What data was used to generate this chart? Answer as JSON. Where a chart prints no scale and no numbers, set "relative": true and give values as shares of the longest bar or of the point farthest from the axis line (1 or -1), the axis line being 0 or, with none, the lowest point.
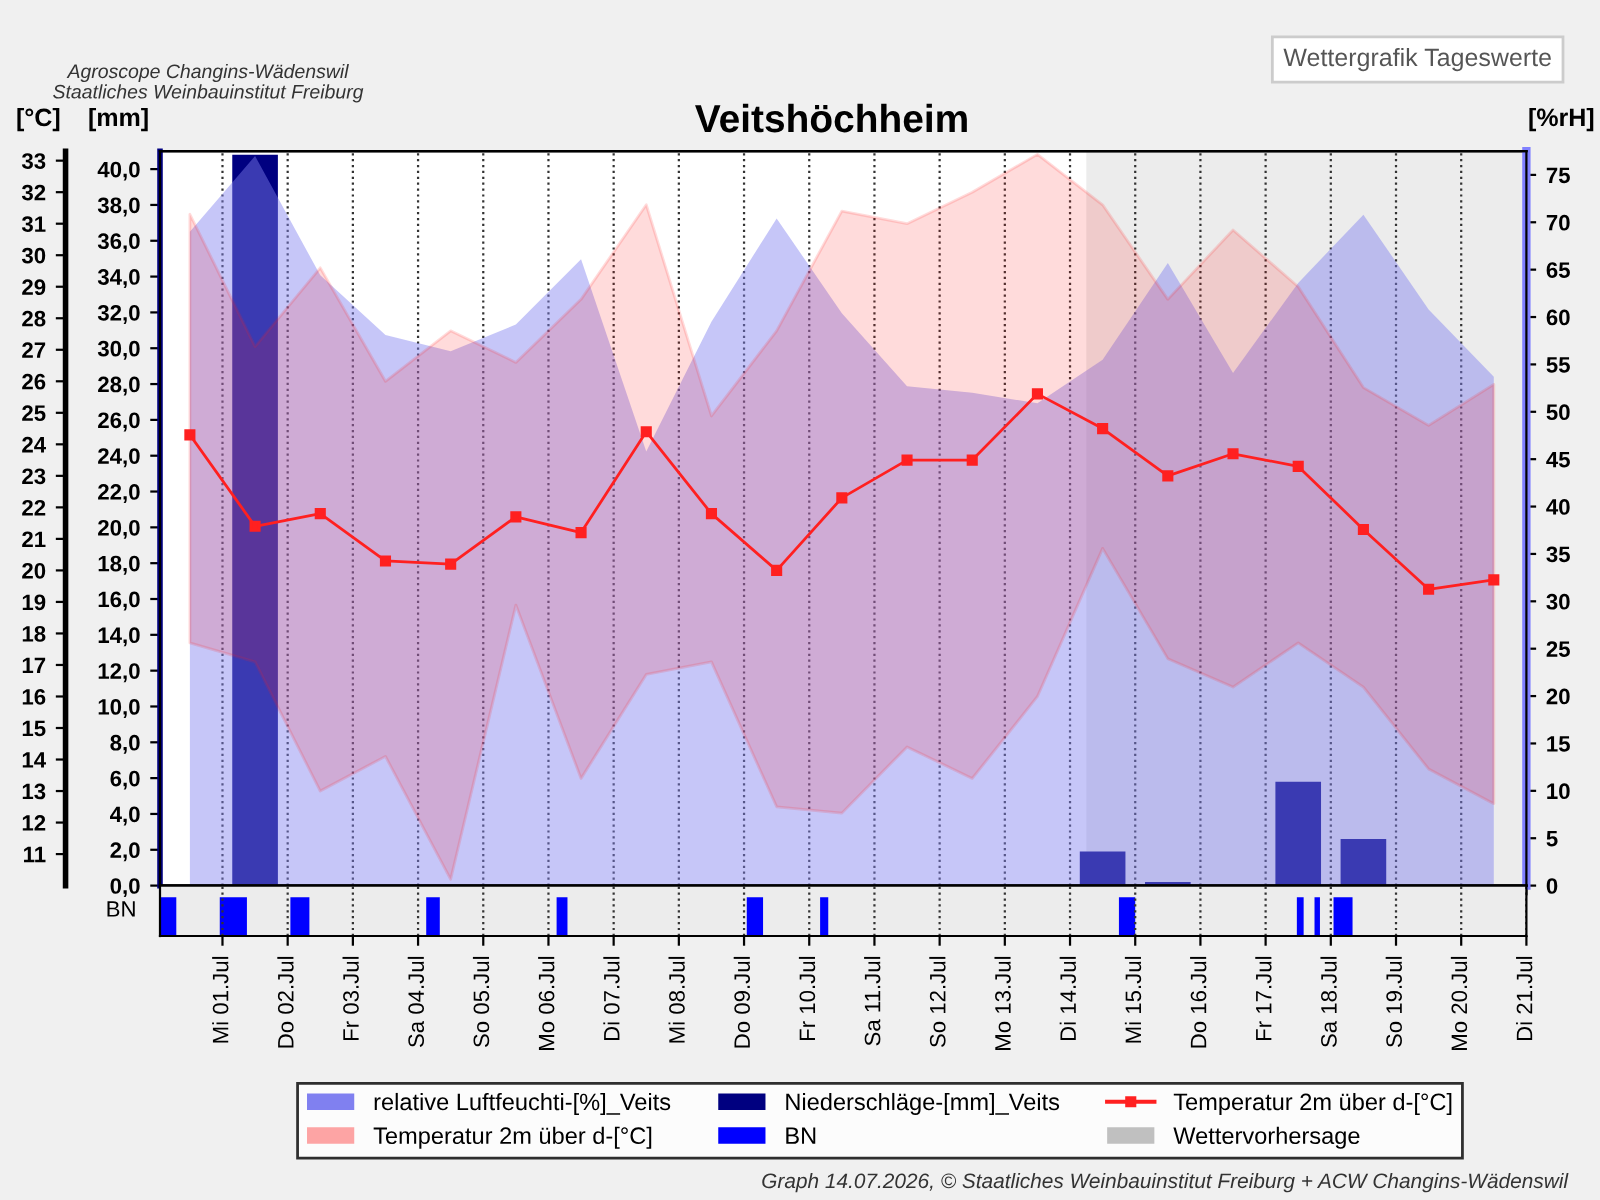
{
  "chart_data": [
    {
      "type": "line",
      "title": "Veitshöchheim",
      "ylabel": "[mm]",
      "y2label": "[%rH]",
      "y3label": "[°C]",
      "x": [
        "2026-06-30T12:00",
        "2026-07-01T12:00",
        "2026-07-02T12:00",
        "2026-07-03T12:00",
        "2026-07-04T12:00",
        "2026-07-05T12:00",
        "2026-07-06T12:00",
        "2026-07-07T12:00",
        "2026-07-08T12:00",
        "2026-07-09T12:00",
        "2026-07-10T12:00",
        "2026-07-11T12:00",
        "2026-07-12T12:00",
        "2026-07-13T12:00",
        "2026-07-14T12:00",
        "2026-07-15T12:00",
        "2026-07-16T12:00",
        "2026-07-17T12:00",
        "2026-07-18T12:00",
        "2026-07-19T12:00",
        "2026-07-20T12:00"
      ],
      "series": [
        {
          "name": "relative Luftfeuchti-[%]_Veits",
          "type": "area",
          "axis": "y2",
          "color": "#8080f0",
          "values": [
            69.0,
            77.0,
            64.4,
            58.1,
            56.4,
            59.2,
            66.1,
            45.8,
            59.5,
            70.4,
            60.4,
            52.7,
            52.0,
            50.9,
            55.5,
            65.7,
            54.1,
            63.6,
            70.8,
            60.8,
            53.7
          ]
        },
        {
          "name": "Niederschläge-[mm]_Veits",
          "type": "bar",
          "axis": "y",
          "color": "#000080",
          "values": [
            null,
            40.8,
            null,
            null,
            null,
            null,
            null,
            null,
            null,
            null,
            null,
            null,
            null,
            null,
            1.9,
            0.2,
            null,
            5.8,
            2.6,
            null,
            null
          ]
        },
        {
          "name": "Temperatur 2m über d-[°C]",
          "type": "line",
          "axis": "y3",
          "color": "#ff2020",
          "marker": "square",
          "line_style": "solid",
          "values": [
            24.3,
            21.4,
            21.8,
            20.3,
            20.2,
            21.7,
            21.2,
            24.4,
            21.8,
            20.0,
            22.3,
            23.5,
            23.5,
            25.6,
            24.5,
            23.0,
            23.7,
            23.3,
            21.3,
            19.4,
            19.7
          ],
          "lower": [
            17.7,
            17.1,
            13.0,
            14.1,
            10.2,
            18.9,
            13.4,
            16.7,
            17.1,
            12.5,
            12.3,
            14.4,
            13.4,
            16.0,
            20.7,
            17.2,
            16.3,
            17.7,
            16.3,
            13.7,
            12.6
          ],
          "upper": [
            31.3,
            27.1,
            29.6,
            26.0,
            27.6,
            26.6,
            28.6,
            31.6,
            24.9,
            27.6,
            31.4,
            31.0,
            32.0,
            33.2,
            31.6,
            28.6,
            30.8,
            29.0,
            25.8,
            24.6,
            25.9
          ]
        }
      ],
      "xlim": [
        "2026-06-30T01:00",
        "2026-07-21T00:00"
      ],
      "xticks": [
        "2026-07-01",
        "2026-07-02",
        "2026-07-03",
        "2026-07-04",
        "2026-07-05",
        "2026-07-06",
        "2026-07-07",
        "2026-07-08",
        "2026-07-09",
        "2026-07-10",
        "2026-07-11",
        "2026-07-12",
        "2026-07-13",
        "2026-07-14",
        "2026-07-15",
        "2026-07-16",
        "2026-07-17",
        "2026-07-18",
        "2026-07-19",
        "2026-07-20",
        "2026-07-21"
      ],
      "ylim": [
        0,
        41.0
      ],
      "yticks": [
        {
          "value": 0,
          "label": "0,0"
        },
        {
          "value": 2,
          "label": "2,0"
        },
        {
          "value": 4,
          "label": "4,0"
        },
        {
          "value": 6,
          "label": "6,0"
        },
        {
          "value": 8,
          "label": "8,0"
        },
        {
          "value": 10,
          "label": "10,0"
        },
        {
          "value": 12,
          "label": "12,0"
        },
        {
          "value": 14,
          "label": "14,0"
        },
        {
          "value": 16,
          "label": "16,0"
        },
        {
          "value": 18,
          "label": "18,0"
        },
        {
          "value": 20,
          "label": "20,0"
        },
        {
          "value": 22,
          "label": "22,0"
        },
        {
          "value": 24,
          "label": "24,0"
        },
        {
          "value": 26,
          "label": "26,0"
        },
        {
          "value": 28,
          "label": "28,0"
        },
        {
          "value": 30,
          "label": "30,0"
        },
        {
          "value": 32,
          "label": "32,0"
        },
        {
          "value": 34,
          "label": "34,0"
        },
        {
          "value": 36,
          "label": "36,0"
        },
        {
          "value": 38,
          "label": "38,0"
        },
        {
          "value": 40,
          "label": "40,0"
        }
      ],
      "y2lim": [
        0,
        77.5
      ],
      "y2ticks": [
        0,
        5,
        10,
        15,
        20,
        25,
        30,
        35,
        40,
        45,
        50,
        55,
        60,
        65,
        70,
        75
      ],
      "y3lim": [
        10,
        33.3
      ],
      "y3ticks": [
        11,
        12,
        13,
        14,
        15,
        16,
        17,
        18,
        19,
        20,
        21,
        22,
        23,
        24,
        25,
        26,
        27,
        28,
        29,
        30,
        31,
        32,
        33
      ],
      "bands": [
        {
          "axis": "x",
          "from": "2026-07-14T06:00",
          "to": "2026-07-21T00:00",
          "label": "Wettervorhersage",
          "color": "#c0c0c0"
        }
      ],
      "grid": "x",
      "legend": "bottom",
      "tick_labels": "y",
      "annotations": [
        "Wettergrafik Tageswerte",
        "Agroscope Changins-Wädenswil",
        "Staatliches Weinbauinstitut Freiburg",
        "Graph 14.07.2026, © Staatliches Weinbauinstitut Freiburg + ACW Changins-Wädenswil"
      ]
    },
    {
      "type": "area",
      "relative": true,
      "ylabel": "BN",
      "x": [
        "2026-06-30T01:00",
        "2026-06-30T01:00",
        "2026-06-30T07:00",
        "2026-06-30T07:00",
        "2026-06-30T23:00",
        "2026-06-30T23:00",
        "2026-07-01T09:00",
        "2026-07-01T09:00",
        "2026-07-02T01:00",
        "2026-07-02T01:00",
        "2026-07-02T08:00",
        "2026-07-02T08:00",
        "2026-07-04T03:00",
        "2026-07-04T03:00",
        "2026-07-04T08:00",
        "2026-07-04T08:00",
        "2026-07-06T03:00",
        "2026-07-06T03:00",
        "2026-07-06T07:00",
        "2026-07-06T07:00",
        "2026-07-09T01:00",
        "2026-07-09T01:00",
        "2026-07-09T07:00",
        "2026-07-09T07:00",
        "2026-07-10T04:00",
        "2026-07-10T04:00",
        "2026-07-10T07:00",
        "2026-07-10T07:00",
        "2026-07-14T18:00",
        "2026-07-14T18:00",
        "2026-07-15T00:00",
        "2026-07-15T00:00",
        "2026-07-17T11:30",
        "2026-07-17T11:30",
        "2026-07-17T14:00",
        "2026-07-17T14:00",
        "2026-07-17T18:00",
        "2026-07-17T18:00",
        "2026-07-17T20:00",
        "2026-07-17T20:00",
        "2026-07-18T01:00",
        "2026-07-18T01:00",
        "2026-07-18T08:00",
        "2026-07-18T08:00"
      ],
      "series": [
        {
          "name": "BN",
          "color": "#0000ff",
          "values": [
            0,
            1,
            1,
            0,
            0,
            1,
            1,
            0,
            0,
            1,
            1,
            0,
            0,
            1,
            1,
            0,
            0,
            1,
            1,
            0,
            0,
            1,
            1,
            0,
            0,
            1,
            1,
            0,
            0,
            1,
            1,
            0,
            0,
            1,
            1,
            0,
            0,
            1,
            1,
            0,
            0,
            1,
            1,
            0
          ]
        }
      ],
      "xlim": [
        "2026-06-30T01:00",
        "2026-07-21T00:00"
      ],
      "xticks": [
        {
          "value": "2026-07-01",
          "label": "Mi 01.Jul"
        },
        {
          "value": "2026-07-02",
          "label": "Do 02.Jul"
        },
        {
          "value": "2026-07-03",
          "label": "Fr 03.Jul"
        },
        {
          "value": "2026-07-04",
          "label": "Sa 04.Jul"
        },
        {
          "value": "2026-07-05",
          "label": "So 05.Jul"
        },
        {
          "value": "2026-07-06",
          "label": "Mo 06.Jul"
        },
        {
          "value": "2026-07-07",
          "label": "Di 07.Jul"
        },
        {
          "value": "2026-07-08",
          "label": "Mi 08.Jul"
        },
        {
          "value": "2026-07-09",
          "label": "Do 09.Jul"
        },
        {
          "value": "2026-07-10",
          "label": "Fr 10.Jul"
        },
        {
          "value": "2026-07-11",
          "label": "Sa 11.Jul"
        },
        {
          "value": "2026-07-12",
          "label": "So 12.Jul"
        },
        {
          "value": "2026-07-13",
          "label": "Mo 13.Jul"
        },
        {
          "value": "2026-07-14",
          "label": "Di 14.Jul"
        },
        {
          "value": "2026-07-15",
          "label": "Mi 15.Jul"
        },
        {
          "value": "2026-07-16",
          "label": "Do 16.Jul"
        },
        {
          "value": "2026-07-17",
          "label": "Fr 17.Jul"
        },
        {
          "value": "2026-07-18",
          "label": "Sa 18.Jul"
        },
        {
          "value": "2026-07-19",
          "label": "So 19.Jul"
        },
        {
          "value": "2026-07-20",
          "label": "Mo 20.Jul"
        },
        {
          "value": "2026-07-21",
          "label": "Di 21.Jul"
        }
      ],
      "grid": "x"
    }
  ]
}
